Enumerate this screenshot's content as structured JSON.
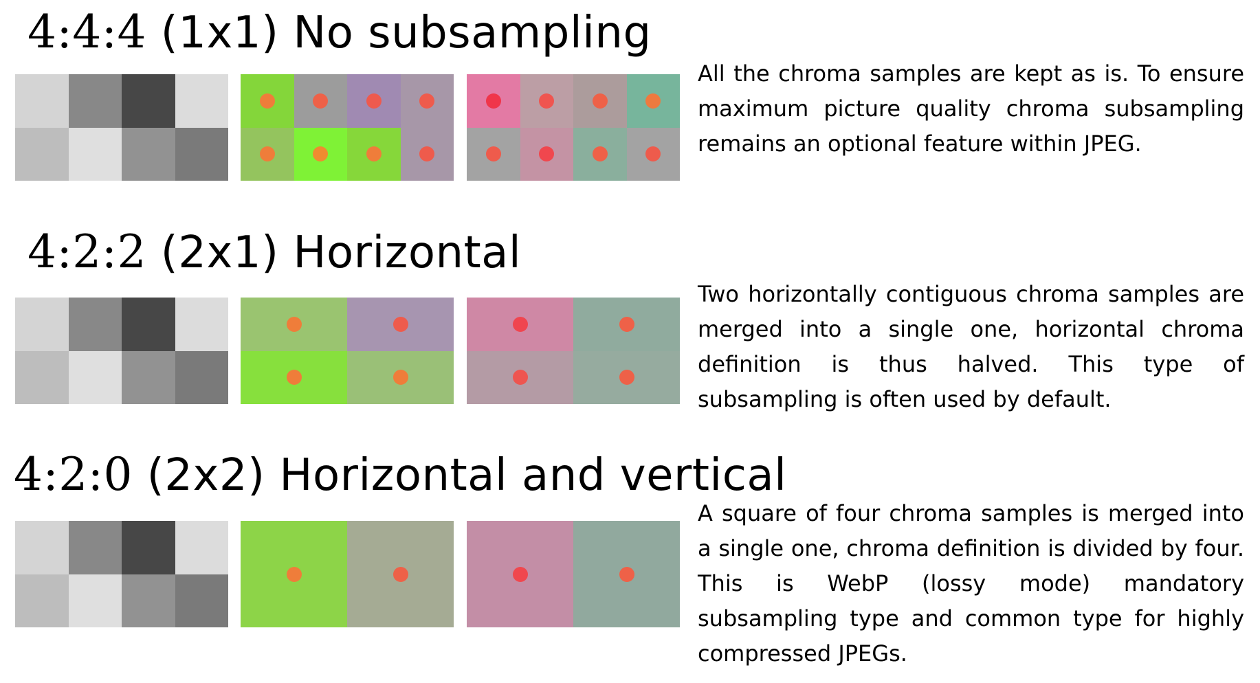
{
  "sections": [
    {
      "ratio": "4:4:4",
      "label": "(1x1) No subsampling",
      "description": "All the chroma samples are kept as is. To ensure maximum picture quality chroma subsampling remains an optional feature within JPEG.",
      "luma": [
        "#d4d4d4",
        "#888888",
        "#474747",
        "#dcdcdc",
        "#bdbdbd",
        "#dfdfdf",
        "#929292",
        "#7a7a7a"
      ],
      "cb": [
        {
          "span": 1,
          "color": "#84d63a",
          "dot": "#ef7d3a"
        },
        {
          "span": 1,
          "color": "#9c9c9c",
          "dot": "#ee6148"
        },
        {
          "span": 1,
          "color": "#a08ab2",
          "dot": "#ee5a4e"
        },
        {
          "span": 1,
          "color": "#a797a8",
          "dot": "#ee5b4c"
        },
        {
          "span": 1,
          "color": "#94c45e",
          "dot": "#ef7d3a"
        },
        {
          "span": 1,
          "color": "#7ff236",
          "dot": "#ef8b30"
        },
        {
          "span": 1,
          "color": "#86d73a",
          "dot": "#ef7d3a"
        },
        {
          "span": 1,
          "color": "#a797a8",
          "dot": "#ee5b4c"
        }
      ],
      "cr": [
        {
          "span": 1,
          "color": "#e37aa4",
          "dot": "#f0354a"
        },
        {
          "span": 1,
          "color": "#bc9ea5",
          "dot": "#ef5550"
        },
        {
          "span": 1,
          "color": "#ac9c9c",
          "dot": "#ee6148"
        },
        {
          "span": 1,
          "color": "#77b59c",
          "dot": "#ee7a3f"
        },
        {
          "span": 1,
          "color": "#a3a3a3",
          "dot": "#ee5b4c"
        },
        {
          "span": 1,
          "color": "#c493a4",
          "dot": "#f0474e"
        },
        {
          "span": 1,
          "color": "#8aaf9d",
          "dot": "#ee6148"
        },
        {
          "span": 1,
          "color": "#a3a3a3",
          "dot": "#ee5b4c"
        }
      ]
    },
    {
      "ratio": "4:2:2",
      "label": "(2x1) Horizontal",
      "description": "Two horizontally contiguous chroma samples are merged into a single one, horizontal chroma definition is thus halved. This type of subsampling is often used by default.",
      "luma": [
        "#d4d4d4",
        "#888888",
        "#474747",
        "#dcdcdc",
        "#bdbdbd",
        "#dfdfdf",
        "#929292",
        "#7a7a7a"
      ],
      "cb": [
        {
          "span": 2,
          "color": "#9ac470",
          "dot": "#ef7d3a"
        },
        {
          "span": 2,
          "color": "#a795b0",
          "dot": "#ee5b4c"
        },
        {
          "span": 2,
          "color": "#87e03d",
          "dot": "#ef7d3a"
        },
        {
          "span": 2,
          "color": "#9ac077",
          "dot": "#ef7d3a"
        }
      ],
      "cr": [
        {
          "span": 2,
          "color": "#cf88a5",
          "dot": "#f0454f"
        },
        {
          "span": 2,
          "color": "#90ab9e",
          "dot": "#ee6148"
        },
        {
          "span": 2,
          "color": "#b49ba5",
          "dot": "#ee5550"
        },
        {
          "span": 2,
          "color": "#96ab9f",
          "dot": "#ee6148"
        }
      ]
    },
    {
      "ratio": "4:2:0",
      "label": "(2x2) Horizontal and vertical",
      "description": "A square of four chroma samples is merged into a single one, chroma definition is divided by four. This is WebP (lossy mode) mandatory subsampling type and common type for highly compressed JPEGs.",
      "luma": [
        "#d4d4d4",
        "#888888",
        "#474747",
        "#dcdcdc",
        "#bdbdbd",
        "#dfdfdf",
        "#929292",
        "#7a7a7a"
      ],
      "cb": [
        {
          "span": 4,
          "color": "#8dd448",
          "dot": "#ef7d3a"
        },
        {
          "span": 4,
          "color": "#a5ab94",
          "dot": "#ee6148"
        }
      ],
      "cr": [
        {
          "span": 4,
          "color": "#c38ea6",
          "dot": "#f0474e"
        },
        {
          "span": 4,
          "color": "#91a99e",
          "dot": "#ee6148"
        }
      ]
    }
  ]
}
